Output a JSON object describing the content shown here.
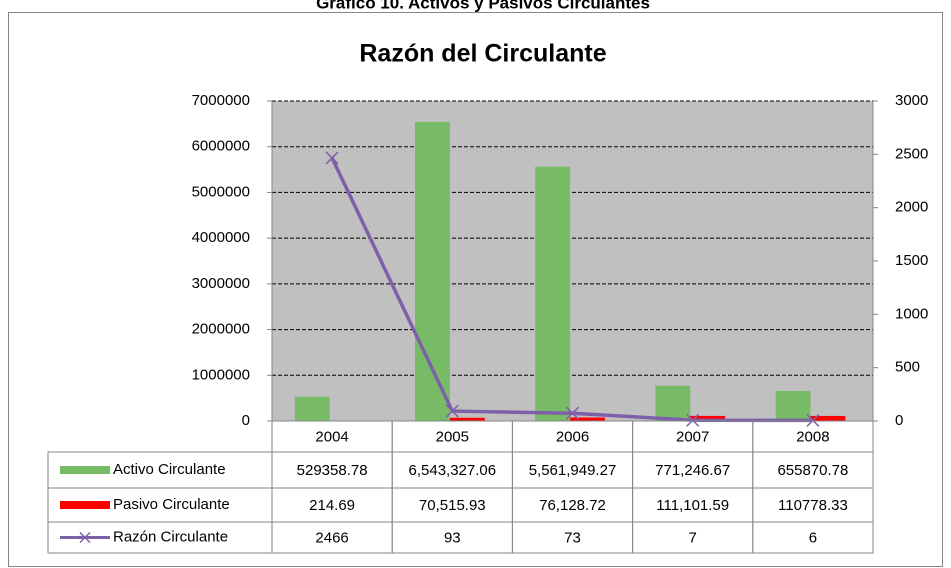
{
  "caption": "Gráfico 10. Activos y Pasivos Circulantes",
  "chart_data": {
    "type": "bar",
    "title": "Razón del Circulante",
    "categories": [
      "2004",
      "2005",
      "2006",
      "2007",
      "2008"
    ],
    "series": [
      {
        "name": "Activo Circulante",
        "type": "bar",
        "color": "#77bb66",
        "values": [
          529358.78,
          6543327.06,
          5561949.27,
          771246.67,
          655870.78
        ],
        "value_labels": [
          "529358.78",
          "6,543,327.06",
          "5,561,949.27",
          "771,246.67",
          "655870.78"
        ]
      },
      {
        "name": "Pasivo Circulante",
        "type": "bar",
        "color": "#ff0000",
        "values": [
          214.69,
          70515.93,
          76128.72,
          111101.59,
          110778.33
        ],
        "value_labels": [
          "214.69",
          "70,515.93",
          "76,128.72",
          "111,101.59",
          "110778.33"
        ]
      },
      {
        "name": "Razón Circulante",
        "type": "line",
        "axis": "y2",
        "color": "#7e60a8",
        "values": [
          2466,
          93,
          73,
          7,
          6
        ]
      }
    ],
    "ylim": [
      0,
      7000000
    ],
    "yticks": [
      0,
      1000000,
      2000000,
      3000000,
      4000000,
      5000000,
      6000000,
      7000000
    ],
    "y2lim": [
      0,
      3000
    ],
    "y2ticks": [
      0,
      500,
      1000,
      1500,
      2000,
      2500,
      3000
    ],
    "grid": true,
    "plot_background": "#c0c0c0"
  }
}
